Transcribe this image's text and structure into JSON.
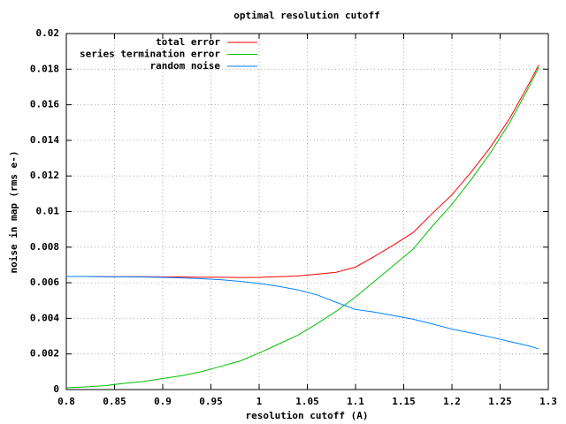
{
  "chart_data": {
    "type": "line",
    "title": "optimal resolution cutoff",
    "xlabel": "resolution cutoff (A)",
    "ylabel": "noise in map (rms e-)",
    "x": [
      0.8,
      0.82,
      0.84,
      0.86,
      0.88,
      0.9,
      0.92,
      0.94,
      0.96,
      0.98,
      1.0,
      1.02,
      1.04,
      1.06,
      1.08,
      1.1,
      1.12,
      1.14,
      1.16,
      1.18,
      1.2,
      1.22,
      1.24,
      1.26,
      1.28,
      1.29
    ],
    "series": [
      {
        "name": "total error",
        "color": "#ff0000",
        "values": [
          0.00635,
          0.00635,
          0.00634,
          0.00634,
          0.00634,
          0.00633,
          0.00632,
          0.00631,
          0.00631,
          0.00629,
          0.0063,
          0.00634,
          0.00638,
          0.00648,
          0.00659,
          0.00688,
          0.00749,
          0.00814,
          0.00883,
          0.00991,
          0.01094,
          0.01222,
          0.01362,
          0.01524,
          0.01718,
          0.01824
        ]
      },
      {
        "name": "series termination error",
        "color": "#00c000",
        "values": [
          0.0001,
          0.00015,
          0.00022,
          0.00035,
          0.00045,
          0.00062,
          0.00078,
          0.001,
          0.0013,
          0.0016,
          0.00205,
          0.00255,
          0.00305,
          0.0037,
          0.0044,
          0.0052,
          0.0061,
          0.007,
          0.0079,
          0.0092,
          0.0104,
          0.0118,
          0.0133,
          0.015,
          0.017,
          0.0181
        ]
      },
      {
        "name": "random noise",
        "color": "#0080ff",
        "values": [
          0.00635,
          0.00635,
          0.00634,
          0.00633,
          0.00632,
          0.0063,
          0.00627,
          0.00623,
          0.00617,
          0.00608,
          0.00596,
          0.0058,
          0.0056,
          0.00532,
          0.0049,
          0.0045,
          0.00435,
          0.00415,
          0.00395,
          0.00368,
          0.0034,
          0.00318,
          0.00295,
          0.0027,
          0.00245,
          0.00228
        ]
      }
    ],
    "xlim": [
      0.8,
      1.3
    ],
    "xticks": [
      0.8,
      0.85,
      0.9,
      0.95,
      1,
      1.05,
      1.1,
      1.15,
      1.2,
      1.25,
      1.3
    ],
    "ylim": [
      0,
      0.02
    ],
    "yticks": [
      0,
      0.002,
      0.004,
      0.006,
      0.008,
      0.01,
      0.012,
      0.014,
      0.016,
      0.018,
      0.02
    ],
    "grid": true,
    "legend": "top-left"
  }
}
